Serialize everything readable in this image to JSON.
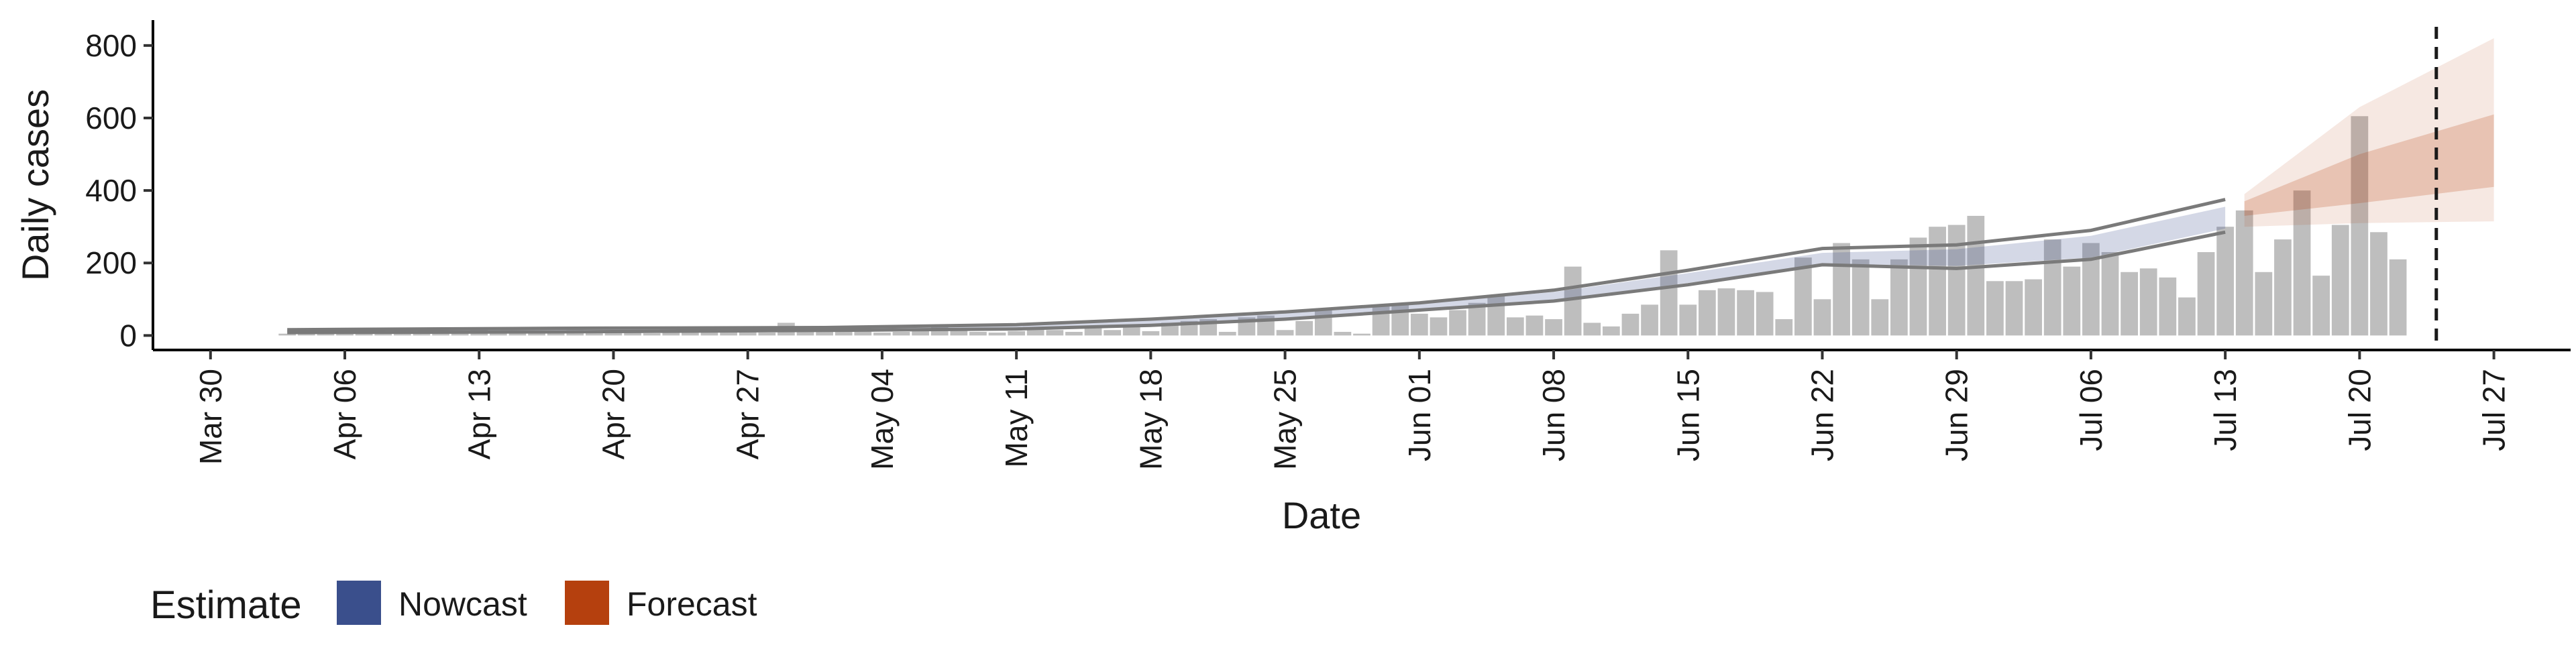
{
  "chart_data": {
    "type": "bar",
    "xlabel": "Date",
    "ylabel": "Daily cases",
    "ylim": [
      -40,
      870
    ],
    "xlim": [
      "2020-03-27",
      "2020-07-31"
    ],
    "y_ticks": [
      0,
      200,
      400,
      600,
      800
    ],
    "x_ticks": [
      {
        "date": "2020-03-30",
        "label": "Mar 30"
      },
      {
        "date": "2020-04-06",
        "label": "Apr 06"
      },
      {
        "date": "2020-04-13",
        "label": "Apr 13"
      },
      {
        "date": "2020-04-20",
        "label": "Apr 20"
      },
      {
        "date": "2020-04-27",
        "label": "Apr 27"
      },
      {
        "date": "2020-05-04",
        "label": "May 04"
      },
      {
        "date": "2020-05-11",
        "label": "May 11"
      },
      {
        "date": "2020-05-18",
        "label": "May 18"
      },
      {
        "date": "2020-05-25",
        "label": "May 25"
      },
      {
        "date": "2020-06-01",
        "label": "Jun 01"
      },
      {
        "date": "2020-06-08",
        "label": "Jun 08"
      },
      {
        "date": "2020-06-15",
        "label": "Jun 15"
      },
      {
        "date": "2020-06-22",
        "label": "Jun 22"
      },
      {
        "date": "2020-06-29",
        "label": "Jun 29"
      },
      {
        "date": "2020-07-06",
        "label": "Jul 06"
      },
      {
        "date": "2020-07-13",
        "label": "Jul 13"
      },
      {
        "date": "2020-07-20",
        "label": "Jul 20"
      },
      {
        "date": "2020-07-27",
        "label": "Jul 27"
      }
    ],
    "grid": false,
    "legend": {
      "position": "bottom-left",
      "title": "Estimate",
      "entries": [
        {
          "label": "Nowcast",
          "color": "#3a4f8c"
        },
        {
          "label": "Forecast",
          "color": "#b5400e"
        }
      ]
    },
    "colors": {
      "bars": "#b3b3b3",
      "bounds": "#7a7a7a",
      "nowcast": "#3a4f8c",
      "forecast": "#b5400e",
      "vline": "#1a1a1a"
    },
    "cases_start_date": "2020-04-03",
    "daily_cases": [
      5,
      10,
      15,
      8,
      12,
      10,
      14,
      8,
      10,
      12,
      15,
      6,
      10,
      8,
      12,
      15,
      8,
      10,
      12,
      6,
      10,
      8,
      12,
      15,
      10,
      8,
      35,
      12,
      10,
      15,
      20,
      8,
      10,
      12,
      30,
      15,
      10,
      8,
      12,
      20,
      15,
      10,
      25,
      15,
      30,
      12,
      35,
      40,
      45,
      10,
      50,
      55,
      15,
      40,
      70,
      10,
      5,
      80,
      85,
      60,
      50,
      70,
      90,
      110,
      50,
      55,
      45,
      190,
      35,
      25,
      60,
      85,
      235,
      85,
      125,
      130,
      125,
      120,
      45,
      215,
      100,
      255,
      210,
      100,
      210,
      270,
      300,
      305,
      330,
      150,
      150,
      155,
      265,
      190,
      255,
      230,
      175,
      185,
      160,
      105,
      230,
      300,
      345,
      175,
      265,
      400,
      165,
      305,
      605,
      285,
      210
    ],
    "bounds_upper": [
      {
        "date": "2020-04-03",
        "value": 16
      },
      {
        "date": "2020-04-17",
        "value": 20
      },
      {
        "date": "2020-05-01",
        "value": 22
      },
      {
        "date": "2020-05-11",
        "value": 30
      },
      {
        "date": "2020-05-18",
        "value": 45
      },
      {
        "date": "2020-05-25",
        "value": 65
      },
      {
        "date": "2020-06-01",
        "value": 90
      },
      {
        "date": "2020-06-08",
        "value": 125
      },
      {
        "date": "2020-06-15",
        "value": 180
      },
      {
        "date": "2020-06-22",
        "value": 240
      },
      {
        "date": "2020-06-29",
        "value": 250
      },
      {
        "date": "2020-07-06",
        "value": 290
      },
      {
        "date": "2020-07-13",
        "value": 375
      }
    ],
    "bounds_lower": [
      {
        "date": "2020-04-03",
        "value": 8
      },
      {
        "date": "2020-04-17",
        "value": 10
      },
      {
        "date": "2020-05-01",
        "value": 14
      },
      {
        "date": "2020-05-11",
        "value": 18
      },
      {
        "date": "2020-05-18",
        "value": 28
      },
      {
        "date": "2020-05-25",
        "value": 45
      },
      {
        "date": "2020-06-01",
        "value": 70
      },
      {
        "date": "2020-06-08",
        "value": 95
      },
      {
        "date": "2020-06-15",
        "value": 140
      },
      {
        "date": "2020-06-22",
        "value": 195
      },
      {
        "date": "2020-06-29",
        "value": 185
      },
      {
        "date": "2020-07-06",
        "value": 210
      },
      {
        "date": "2020-07-13",
        "value": 285
      }
    ],
    "nowcast_band": [
      {
        "date": "2020-04-03",
        "low": 9,
        "high": 16
      },
      {
        "date": "2020-04-17",
        "low": 11,
        "high": 19
      },
      {
        "date": "2020-05-01",
        "low": 15,
        "high": 22
      },
      {
        "date": "2020-05-11",
        "low": 19,
        "high": 28
      },
      {
        "date": "2020-05-18",
        "low": 30,
        "high": 42
      },
      {
        "date": "2020-05-25",
        "low": 48,
        "high": 62
      },
      {
        "date": "2020-06-01",
        "low": 72,
        "high": 88
      },
      {
        "date": "2020-06-08",
        "low": 98,
        "high": 120
      },
      {
        "date": "2020-06-15",
        "low": 145,
        "high": 172
      },
      {
        "date": "2020-06-22",
        "low": 198,
        "high": 228
      },
      {
        "date": "2020-06-29",
        "low": 192,
        "high": 238
      },
      {
        "date": "2020-07-06",
        "low": 215,
        "high": 275
      },
      {
        "date": "2020-07-13",
        "low": 295,
        "high": 355
      }
    ],
    "forecast_band_outer": [
      {
        "date": "2020-07-14",
        "low": 300,
        "high": 390
      },
      {
        "date": "2020-07-20",
        "low": 310,
        "high": 630
      },
      {
        "date": "2020-07-27",
        "low": 315,
        "high": 820
      }
    ],
    "forecast_band_inner": [
      {
        "date": "2020-07-14",
        "low": 330,
        "high": 370
      },
      {
        "date": "2020-07-20",
        "low": 365,
        "high": 500
      },
      {
        "date": "2020-07-27",
        "low": 410,
        "high": 610
      }
    ],
    "vline_date": "2020-07-24"
  }
}
